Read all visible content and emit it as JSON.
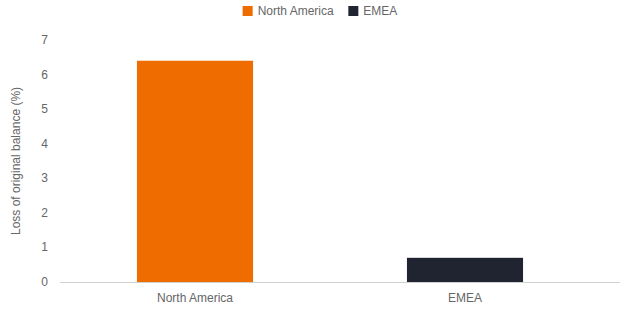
{
  "chart_data": {
    "type": "bar",
    "y_label": "Loss of original balance (%)",
    "categories": [
      "North America",
      "EMEA"
    ],
    "values": [
      6.4,
      0.7
    ],
    "colors": [
      "#ef6c00",
      "#1f2430"
    ],
    "ylim": [
      0,
      7
    ],
    "yticks": [
      0,
      1,
      2,
      3,
      4,
      5,
      6,
      7
    ],
    "grid": false,
    "legend": "top"
  }
}
